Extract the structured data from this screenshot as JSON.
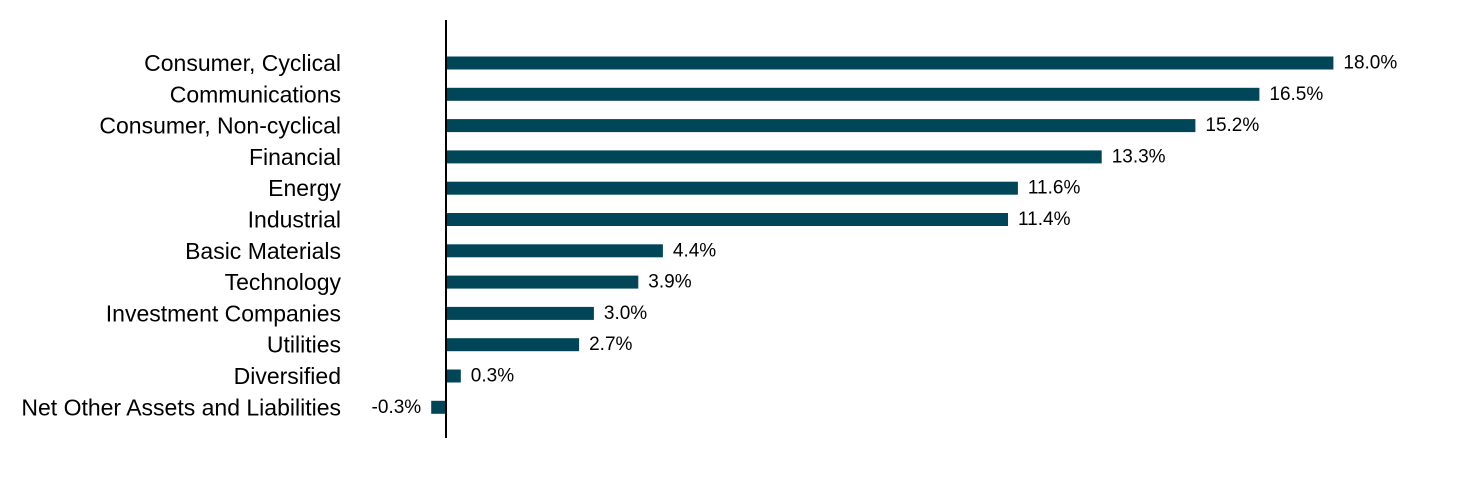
{
  "chart_data": {
    "type": "bar",
    "orientation": "horizontal",
    "title": "",
    "xlabel": "",
    "ylabel": "",
    "categories": [
      "Consumer, Cyclical",
      "Communications",
      "Consumer, Non-cyclical",
      "Financial",
      "Energy",
      "Industrial",
      "Basic Materials",
      "Technology",
      "Investment Companies",
      "Utilities",
      "Diversified",
      "Net Other Assets and Liabilities"
    ],
    "values": [
      18.0,
      16.5,
      15.2,
      13.3,
      11.6,
      11.4,
      4.4,
      3.9,
      3.0,
      2.7,
      0.3,
      -0.3
    ],
    "value_labels": [
      "18.0%",
      "16.5%",
      "15.2%",
      "13.3%",
      "11.6%",
      "11.4%",
      "4.4%",
      "3.9%",
      "3.0%",
      "2.7%",
      "0.3%",
      "-0.3%"
    ],
    "value_suffix": "%",
    "xlim": [
      -0.3,
      18.0
    ],
    "grid": false,
    "legend": "none",
    "bar_color": "#004658"
  }
}
